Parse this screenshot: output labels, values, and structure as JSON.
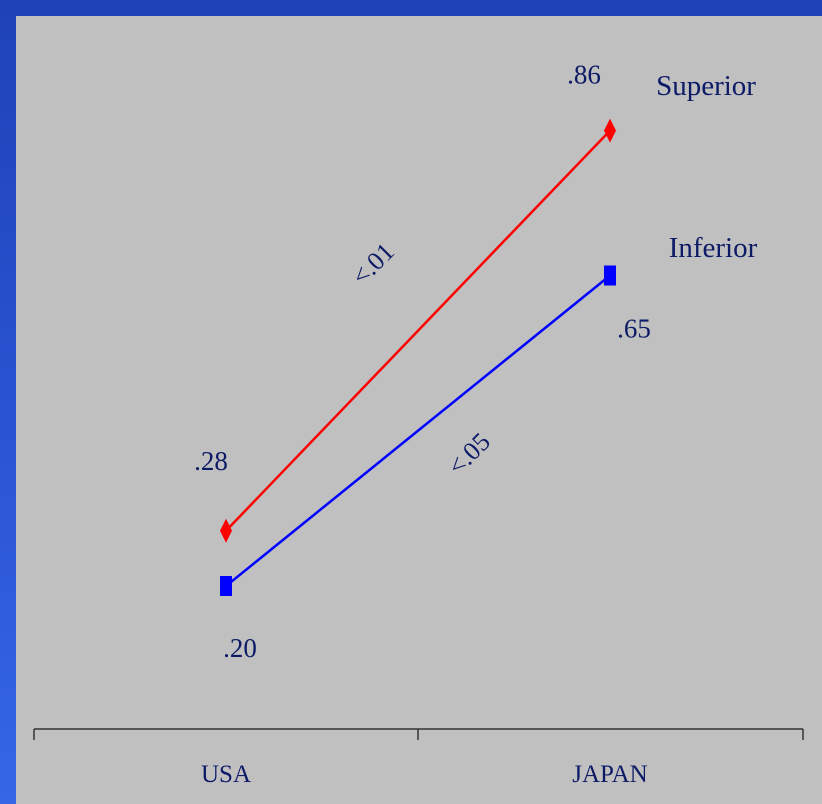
{
  "chart_data": {
    "type": "line",
    "categories": [
      "USA",
      "JAPAN"
    ],
    "series": [
      {
        "name": "Superior",
        "values": [
          0.28,
          0.86
        ],
        "labels": [
          ".28",
          ".86"
        ],
        "color": "#ff0000",
        "marker": "diamond"
      },
      {
        "name": "Inferior",
        "values": [
          0.2,
          0.65
        ],
        "labels": [
          ".20",
          ".65"
        ],
        "color": "#0000ff",
        "marker": "square"
      }
    ],
    "annotations": [
      "<.01",
      "<.05"
    ],
    "title": "",
    "xlabel": "",
    "ylabel": "",
    "grid": false
  },
  "colors": {
    "background": "#c0c0c0",
    "frame": "#2b56d6",
    "text": "#0d1a66"
  }
}
